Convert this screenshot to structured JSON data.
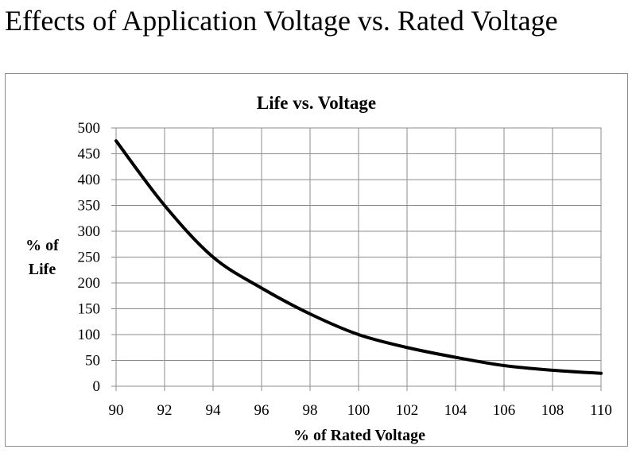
{
  "page": {
    "title": "Effects of Application Voltage vs. Rated Voltage"
  },
  "chart_data": {
    "type": "line",
    "title": "Life vs. Voltage",
    "xlabel": "% of Rated Voltage",
    "ylabel": [
      "% of",
      "Life"
    ],
    "xlim": [
      90,
      110
    ],
    "ylim": [
      0,
      500
    ],
    "x_ticks": [
      90,
      92,
      94,
      96,
      98,
      100,
      102,
      104,
      106,
      108,
      110
    ],
    "y_ticks": [
      0,
      50,
      100,
      150,
      200,
      250,
      300,
      350,
      400,
      450,
      500
    ],
    "grid": true,
    "legend": "none",
    "line_color": "#000000",
    "series": [
      {
        "x": [
          90,
          92,
          94,
          96,
          98,
          100,
          102,
          104,
          106,
          108,
          110
        ],
        "values": [
          475,
          350,
          250,
          190,
          140,
          100,
          75,
          56,
          40,
          31,
          25
        ]
      }
    ]
  }
}
